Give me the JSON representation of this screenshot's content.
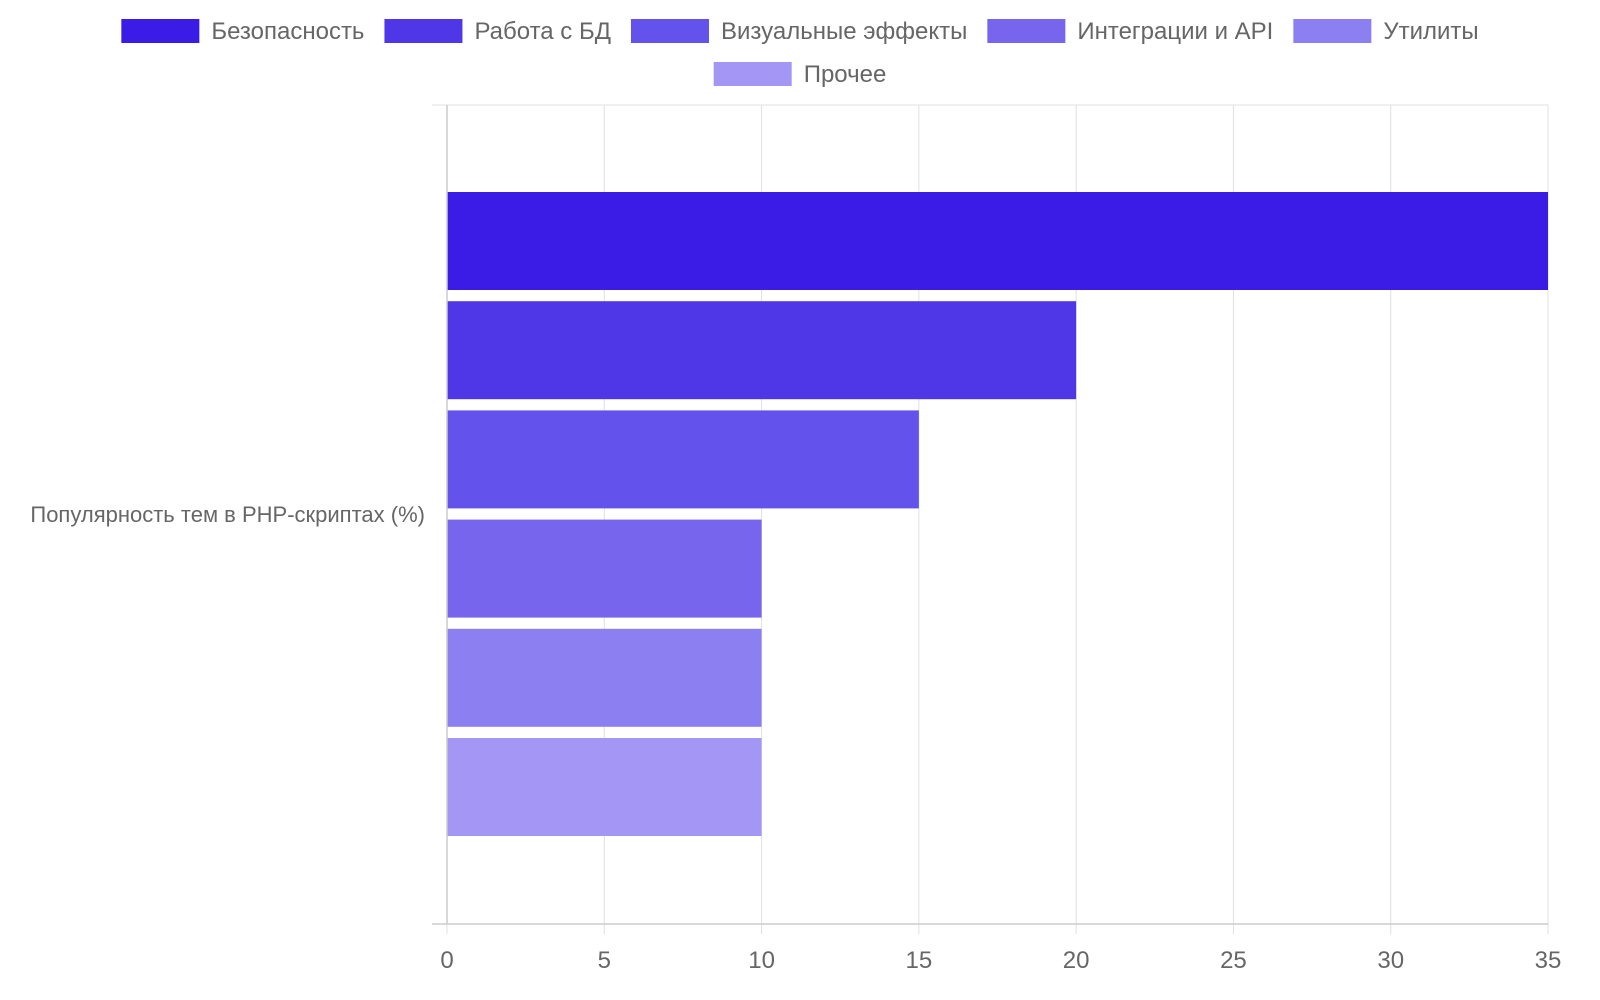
{
  "chart_data": {
    "type": "bar",
    "orientation": "horizontal",
    "categories": [
      "Популярность тем в PHP-скриптах (%)"
    ],
    "series": [
      {
        "name": "Безопасность",
        "values": [
          35
        ],
        "color": "#3b1be6"
      },
      {
        "name": "Работа с БД",
        "values": [
          20
        ],
        "color": "#4f37e8"
      },
      {
        "name": "Визуальные эффекты",
        "values": [
          15
        ],
        "color": "#6352ec"
      },
      {
        "name": "Интеграции и API",
        "values": [
          10
        ],
        "color": "#7865ee"
      },
      {
        "name": "Утилиты",
        "values": [
          10
        ],
        "color": "#8c7ff1"
      },
      {
        "name": "Прочее",
        "values": [
          10
        ],
        "color": "#a396f4"
      }
    ],
    "xlim": [
      0,
      35
    ],
    "x_ticks": [
      "0",
      "5",
      "10",
      "15",
      "20",
      "25",
      "30",
      "35"
    ],
    "legend_position": "top",
    "grid": true
  }
}
